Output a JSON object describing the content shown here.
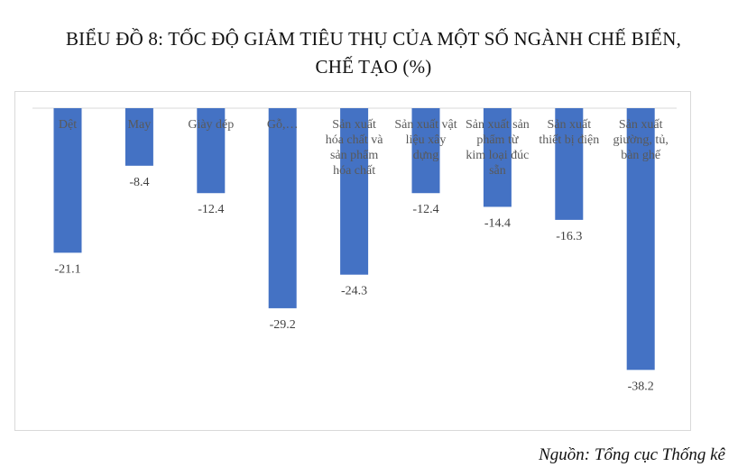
{
  "chart_data": {
    "type": "bar",
    "title_line1": "BIỂU ĐỒ 8: TỐC ĐỘ GIẢM TIÊU THỤ CỦA MỘT SỐ NGÀNH CHẾ BIẾN,",
    "title_line2": "CHẾ TẠO (%)",
    "categories": [
      "Dệt",
      "May",
      "Giày dép",
      "Gỗ,…",
      "Sản xuất hóa chất và sản phẩm hóa chất",
      "Sản xuất vật liệu xây dựng",
      "Sản xuất sản phẩm từ kim loại đúc sẵn",
      "Sản xuất thiết bị điện",
      "Sản xuất giường, tủ, bàn ghế"
    ],
    "category_lines": [
      [
        "Dệt"
      ],
      [
        "May"
      ],
      [
        "Giày dép"
      ],
      [
        "Gỗ,…"
      ],
      [
        "Sản xuất",
        "hóa chất và",
        "sản phẩm",
        "hóa chất"
      ],
      [
        "Sản xuất vật",
        "liệu xây",
        "dựng"
      ],
      [
        "Sản xuất sản",
        "phẩm từ",
        "kim loại đúc",
        "sẵn"
      ],
      [
        "Sản xuất",
        "thiết bị điện"
      ],
      [
        "Sản xuất",
        "giường, tủ,",
        "bàn ghế"
      ]
    ],
    "values": [
      -21.1,
      -8.4,
      -12.4,
      -29.2,
      -24.3,
      -12.4,
      -14.4,
      -16.3,
      -38.2
    ],
    "value_labels": [
      "-21.1",
      "-8.4",
      "-12.4",
      "-29.2",
      "-24.3",
      "-12.4",
      "-14.4",
      "-16.3",
      "-38.2"
    ],
    "ylim": [
      -40,
      0
    ],
    "grid": false,
    "legend": "none",
    "bar_color": "#4472c4"
  },
  "source": "Nguồn: Tổng cục Thống kê"
}
